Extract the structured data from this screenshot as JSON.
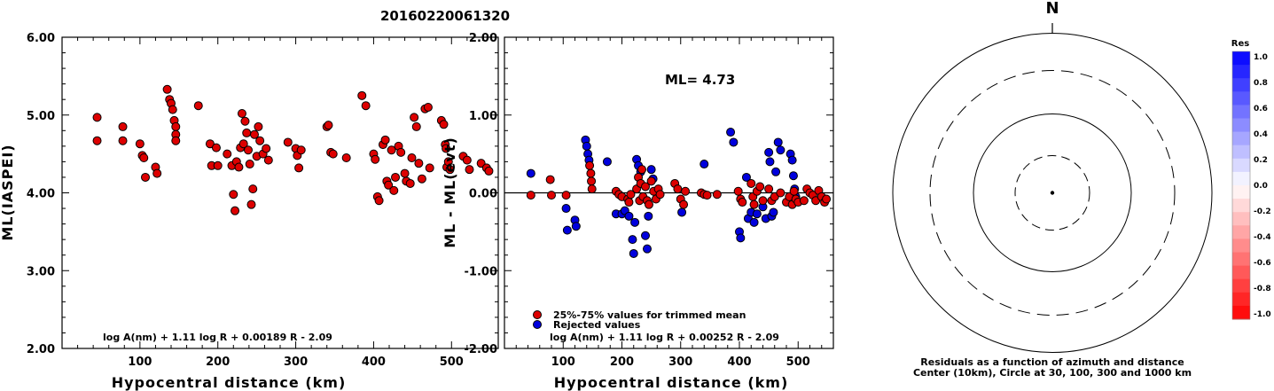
{
  "title": "20160220061320",
  "left_panel": {
    "ylabel": "ML(IASPEI)",
    "xlabel": "Hypocentral distance (km)",
    "yticks": [
      "6.00",
      "5.00",
      "4.00",
      "3.00",
      "2.00"
    ],
    "xticks": [
      "100",
      "200",
      "300",
      "400",
      "500"
    ],
    "formula": "log A(nm) + 1.11 log R + 0.00189 R - 2.09"
  },
  "right_panel": {
    "ylabel": "ML - ML(evt)",
    "xlabel": "Hypocentral distance (km)",
    "yticks": [
      "2.00",
      "1.00",
      "0.00",
      "-1.00",
      "-2.00"
    ],
    "xticks": [
      "100",
      "200",
      "300",
      "400",
      "500"
    ],
    "ml_text": "ML= 4.73",
    "legend_trimmed": "25%-75% values for trimmed mean",
    "legend_rejected": "Rejected values",
    "formula": "log A(nm) + 1.11 log R + 0.00252 R - 2.09"
  },
  "polar": {
    "north": "N",
    "caption1": "Residuals as a function of azimuth and distance",
    "caption2": "Center (10km), Circle at 30, 100, 300 and 1000 km"
  },
  "colorbar": {
    "title": "Res",
    "labels": [
      "1.0",
      "0.8",
      "0.6",
      "0.4",
      "0.2",
      "0.0",
      "-0.2",
      "-0.4",
      "-0.6",
      "-0.8",
      "-1.0"
    ]
  },
  "colors": {
    "trimmed": "#dd0000",
    "rejected": "#0000dd",
    "positive_res": "#0000ff",
    "negative_res": "#ff0000"
  },
  "chart_data": [
    {
      "type": "scatter",
      "name": "ML(IASPEI) vs Hypocentral distance",
      "xlim": [
        0,
        560
      ],
      "ylim": [
        2.0,
        6.0
      ],
      "points": [
        [
          45,
          4.97
        ],
        [
          45,
          4.67
        ],
        [
          78,
          4.85
        ],
        [
          78,
          4.67
        ],
        [
          100,
          4.63
        ],
        [
          103,
          4.48
        ],
        [
          105,
          4.45
        ],
        [
          107,
          4.2
        ],
        [
          120,
          4.33
        ],
        [
          122,
          4.25
        ],
        [
          135,
          5.33
        ],
        [
          138,
          5.2
        ],
        [
          140,
          5.15
        ],
        [
          142,
          5.07
        ],
        [
          144,
          4.93
        ],
        [
          146,
          4.85
        ],
        [
          146,
          4.75
        ],
        [
          146,
          4.67
        ],
        [
          175,
          5.12
        ],
        [
          190,
          4.63
        ],
        [
          192,
          4.35
        ],
        [
          198,
          4.58
        ],
        [
          200,
          4.35
        ],
        [
          212,
          4.5
        ],
        [
          218,
          4.35
        ],
        [
          220,
          3.98
        ],
        [
          222,
          3.77
        ],
        [
          224,
          4.4
        ],
        [
          227,
          4.33
        ],
        [
          229,
          4.58
        ],
        [
          231,
          5.02
        ],
        [
          233,
          4.63
        ],
        [
          235,
          4.92
        ],
        [
          237,
          4.77
        ],
        [
          239,
          4.55
        ],
        [
          241,
          4.37
        ],
        [
          243,
          3.85
        ],
        [
          245,
          4.05
        ],
        [
          247,
          4.75
        ],
        [
          250,
          4.47
        ],
        [
          252,
          4.85
        ],
        [
          254,
          4.67
        ],
        [
          258,
          4.5
        ],
        [
          262,
          4.57
        ],
        [
          265,
          4.42
        ],
        [
          290,
          4.65
        ],
        [
          300,
          4.57
        ],
        [
          302,
          4.48
        ],
        [
          304,
          4.32
        ],
        [
          307,
          4.55
        ],
        [
          340,
          4.85
        ],
        [
          342,
          4.87
        ],
        [
          345,
          4.52
        ],
        [
          348,
          4.5
        ],
        [
          365,
          4.45
        ],
        [
          385,
          5.25
        ],
        [
          390,
          5.12
        ],
        [
          400,
          4.5
        ],
        [
          402,
          4.43
        ],
        [
          405,
          3.95
        ],
        [
          407,
          3.9
        ],
        [
          412,
          4.62
        ],
        [
          415,
          4.68
        ],
        [
          417,
          4.15
        ],
        [
          419,
          4.1
        ],
        [
          423,
          4.55
        ],
        [
          426,
          4.03
        ],
        [
          428,
          4.2
        ],
        [
          432,
          4.6
        ],
        [
          435,
          4.52
        ],
        [
          440,
          4.25
        ],
        [
          442,
          4.15
        ],
        [
          447,
          4.12
        ],
        [
          449,
          4.45
        ],
        [
          452,
          4.97
        ],
        [
          455,
          4.85
        ],
        [
          458,
          4.38
        ],
        [
          462,
          4.18
        ],
        [
          466,
          5.08
        ],
        [
          470,
          5.1
        ],
        [
          472,
          4.32
        ],
        [
          487,
          4.93
        ],
        [
          490,
          4.88
        ],
        [
          492,
          4.62
        ],
        [
          493,
          4.57
        ],
        [
          494,
          4.33
        ],
        [
          496,
          4.4
        ],
        [
          498,
          4.3
        ],
        [
          515,
          4.47
        ],
        [
          520,
          4.42
        ],
        [
          523,
          4.3
        ],
        [
          538,
          4.38
        ],
        [
          545,
          4.32
        ],
        [
          548,
          4.28
        ]
      ]
    },
    {
      "type": "scatter",
      "name": "ML - ML(evt) vs Hypocentral distance",
      "xlim": [
        0,
        560
      ],
      "ylim": [
        -2.0,
        2.0
      ],
      "series": [
        {
          "name": "25%-75% values for trimmed mean",
          "points": [
            [
              45,
              -0.03
            ],
            [
              78,
              0.17
            ],
            [
              80,
              -0.03
            ],
            [
              105,
              -0.03
            ],
            [
              145,
              0.35
            ],
            [
              147,
              0.25
            ],
            [
              148,
              0.15
            ],
            [
              149,
              0.05
            ],
            [
              190,
              0.02
            ],
            [
              195,
              -0.02
            ],
            [
              200,
              -0.05
            ],
            [
              210,
              -0.08
            ],
            [
              212,
              -0.12
            ],
            [
              215,
              -0.02
            ],
            [
              225,
              0.05
            ],
            [
              228,
              0.2
            ],
            [
              230,
              -0.1
            ],
            [
              232,
              0.12
            ],
            [
              234,
              0.3
            ],
            [
              236,
              -0.05
            ],
            [
              240,
              0.08
            ],
            [
              243,
              -0.1
            ],
            [
              246,
              -0.15
            ],
            [
              250,
              0.15
            ],
            [
              254,
              0.02
            ],
            [
              258,
              -0.08
            ],
            [
              262,
              0.05
            ],
            [
              265,
              -0.02
            ],
            [
              290,
              0.12
            ],
            [
              295,
              0.05
            ],
            [
              300,
              -0.08
            ],
            [
              305,
              -0.15
            ],
            [
              308,
              0.02
            ],
            [
              335,
              0.0
            ],
            [
              340,
              -0.02
            ],
            [
              345,
              -0.03
            ],
            [
              362,
              -0.02
            ],
            [
              398,
              0.02
            ],
            [
              402,
              -0.08
            ],
            [
              405,
              -0.12
            ],
            [
              420,
              0.12
            ],
            [
              423,
              -0.05
            ],
            [
              425,
              -0.15
            ],
            [
              430,
              0.02
            ],
            [
              435,
              0.08
            ],
            [
              440,
              -0.1
            ],
            [
              450,
              0.05
            ],
            [
              455,
              -0.1
            ],
            [
              460,
              -0.05
            ],
            [
              470,
              0.0
            ],
            [
              480,
              -0.12
            ],
            [
              485,
              -0.05
            ],
            [
              490,
              -0.15
            ],
            [
              493,
              0.02
            ],
            [
              496,
              -0.08
            ],
            [
              500,
              -0.12
            ],
            [
              510,
              -0.1
            ],
            [
              515,
              0.05
            ],
            [
              520,
              0.0
            ],
            [
              525,
              -0.03
            ],
            [
              530,
              -0.1
            ],
            [
              535,
              0.03
            ],
            [
              540,
              -0.05
            ],
            [
              545,
              -0.12
            ],
            [
              548,
              -0.08
            ]
          ]
        },
        {
          "name": "Rejected values",
          "points": [
            [
              45,
              0.25
            ],
            [
              105,
              -0.2
            ],
            [
              107,
              -0.48
            ],
            [
              120,
              -0.35
            ],
            [
              122,
              -0.43
            ],
            [
              138,
              0.68
            ],
            [
              140,
              0.6
            ],
            [
              142,
              0.5
            ],
            [
              144,
              0.42
            ],
            [
              175,
              0.4
            ],
            [
              190,
              -0.27
            ],
            [
              200,
              -0.27
            ],
            [
              205,
              -0.23
            ],
            [
              212,
              -0.3
            ],
            [
              218,
              -0.6
            ],
            [
              220,
              -0.78
            ],
            [
              222,
              -0.38
            ],
            [
              225,
              0.43
            ],
            [
              228,
              0.35
            ],
            [
              232,
              0.27
            ],
            [
              240,
              -0.55
            ],
            [
              243,
              -0.72
            ],
            [
              245,
              -0.3
            ],
            [
              250,
              0.3
            ],
            [
              253,
              0.18
            ],
            [
              302,
              -0.25
            ],
            [
              340,
              0.37
            ],
            [
              385,
              0.78
            ],
            [
              390,
              0.65
            ],
            [
              400,
              -0.5
            ],
            [
              402,
              -0.58
            ],
            [
              412,
              0.2
            ],
            [
              415,
              -0.33
            ],
            [
              420,
              -0.25
            ],
            [
              425,
              -0.38
            ],
            [
              430,
              -0.27
            ],
            [
              440,
              -0.18
            ],
            [
              445,
              -0.33
            ],
            [
              450,
              0.52
            ],
            [
              452,
              0.4
            ],
            [
              455,
              -0.3
            ],
            [
              458,
              -0.25
            ],
            [
              462,
              0.27
            ],
            [
              466,
              0.65
            ],
            [
              470,
              0.55
            ],
            [
              487,
              0.5
            ],
            [
              490,
              0.42
            ],
            [
              492,
              0.22
            ],
            [
              494,
              0.05
            ],
            [
              496,
              -0.05
            ]
          ]
        }
      ],
      "annotation": "ML= 4.73"
    }
  ]
}
